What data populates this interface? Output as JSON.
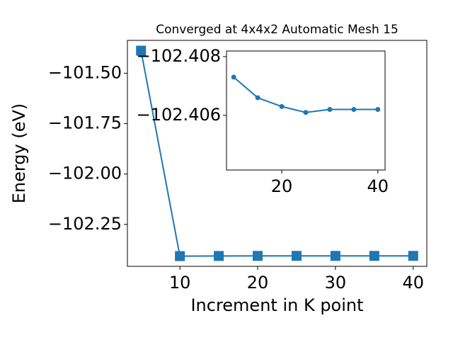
{
  "chart_data": [
    {
      "type": "line",
      "title": "Converged at 4x4x2 Automatic Mesh 15",
      "xlabel": "Increment in K point",
      "ylabel": "Energy (eV)",
      "x": [
        5,
        10,
        15,
        20,
        25,
        30,
        35,
        40
      ],
      "series": [
        {
          "color": "#1f77b4",
          "marker": "square",
          "values": [
            -101.388,
            -102.4073,
            -102.4066,
            -102.4063,
            -102.4061,
            -102.4062,
            -102.4062,
            -102.4062
          ]
        }
      ],
      "xlim": [
        3.25,
        41.75
      ],
      "xticks": [
        10,
        20,
        30,
        40
      ],
      "ylim": [
        -102.458,
        -101.337
      ],
      "yticks": [
        {
          "value": -102.25,
          "label": "−102.25"
        },
        {
          "value": -102.0,
          "label": "−102.00"
        },
        {
          "value": -101.75,
          "label": "−101.75"
        },
        {
          "value": -101.5,
          "label": "−101.50"
        }
      ]
    },
    {
      "type": "line",
      "x": [
        10,
        15,
        20,
        25,
        30,
        35,
        40
      ],
      "series": [
        {
          "color": "#1f77b4",
          "marker": "circle",
          "values": [
            -102.4073,
            -102.4066,
            -102.4063,
            -102.4061,
            -102.4062,
            -102.4062,
            -102.4062
          ]
        }
      ],
      "xlim": [
        8.5,
        41.5
      ],
      "xticks": [
        20,
        40
      ],
      "ylim": [
        -102.40414,
        -102.40819
      ],
      "yticks": [
        {
          "value": -102.406,
          "label": "−102.406"
        },
        {
          "value": -102.408,
          "label": "−102.408"
        }
      ]
    }
  ]
}
